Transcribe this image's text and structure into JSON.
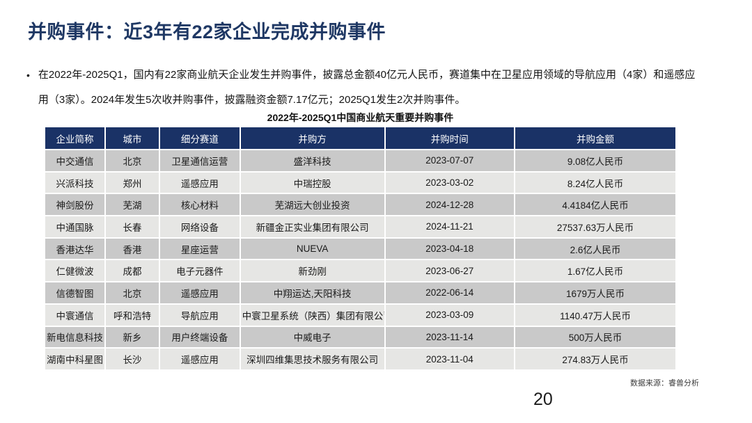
{
  "slide": {
    "title": "并购事件：近3年有22家企业完成并购事件",
    "bullet": "在2022年-2025Q1，国内有22家商业航天企业发生并购事件，披露总金额40亿元人民币，赛道集中在卫星应用领域的导航应用（4家）和遥感应用（3家）。2024年发生5次收并购事件，披露融资金额7.17亿元；2025Q1发生2次并购事件。",
    "page_number": "20",
    "source_label": "数据来源：睿兽分析"
  },
  "table": {
    "title": "2022年-2025Q1中国商业航天重要并购事件",
    "columns": [
      "企业简称",
      "城市",
      "细分赛道",
      "并购方",
      "并购时间",
      "并购金额"
    ],
    "rows": [
      [
        "中交通信",
        "北京",
        "卫星通信运营",
        "盛洋科技",
        "2023-07-07",
        "9.08亿人民币"
      ],
      [
        "兴派科技",
        "郑州",
        "遥感应用",
        "中瑞控股",
        "2023-03-02",
        "8.24亿人民币"
      ],
      [
        "神剑股份",
        "芜湖",
        "核心材料",
        "芜湖远大创业投资",
        "2024-12-28",
        "4.4184亿人民币"
      ],
      [
        "中通国脉",
        "长春",
        "网络设备",
        "新疆金正实业集团有限公司",
        "2024-11-21",
        "27537.63万人民币"
      ],
      [
        "香港达华",
        "香港",
        "星座运营",
        "NUEVA",
        "2023-04-18",
        "2.6亿人民币"
      ],
      [
        "仁健微波",
        "成都",
        "电子元器件",
        "新劲刚",
        "2023-06-27",
        "1.67亿人民币"
      ],
      [
        "信德智图",
        "北京",
        "遥感应用",
        "中翔运达,天阳科技",
        "2022-06-14",
        "1679万人民币"
      ],
      [
        "中寰通信",
        "呼和浩特",
        "导航应用",
        "中寰卫星系统（陕西）集团有限公司",
        "2023-03-09",
        "1140.47万人民币"
      ],
      [
        "新电信息科技",
        "新乡",
        "用户终端设备",
        "中威电子",
        "2023-11-14",
        "500万人民币"
      ],
      [
        "湖南中科星图",
        "长沙",
        "遥感应用",
        "深圳四维集思技术服务有限公司",
        "2023-11-04",
        "274.83万人民币"
      ]
    ]
  },
  "colors": {
    "title_text": "#1f3864",
    "header_bg": "#1a3266",
    "header_text": "#ffffff",
    "row_odd_bg": "#c9c9c9",
    "row_even_bg": "#e6e6e4"
  }
}
